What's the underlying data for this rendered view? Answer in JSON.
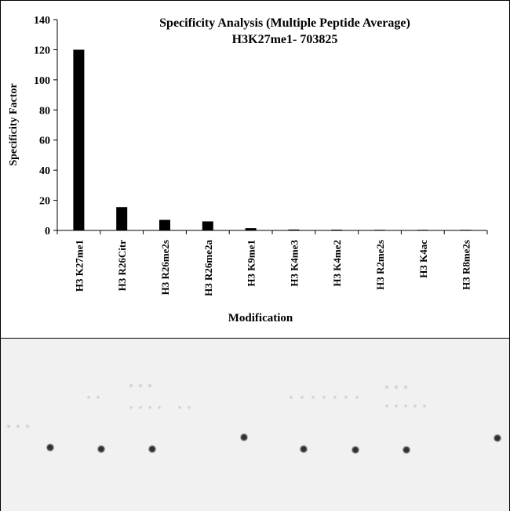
{
  "chart_data": {
    "type": "bar",
    "title": "Specificity Analysis (Multiple Peptide Average)",
    "subtitle": "H3K27me1- 703825",
    "xlabel": "Modification",
    "ylabel": "Specificity Factor",
    "ylim": [
      0,
      140
    ],
    "yticks": [
      0,
      20,
      40,
      60,
      80,
      100,
      120,
      140
    ],
    "grid": false,
    "legend": "none",
    "categories": [
      "H3 K27me1",
      "H3 R26Citr",
      "H3 R26me2s",
      "H3 R26me2a",
      "H3 K9me1",
      "H3 K4me3",
      "H3 K4me2",
      "H3 R2me2s",
      "H3 K4ac",
      "H3 R8me2s"
    ],
    "values": [
      120,
      15.5,
      7,
      6,
      1.5,
      0.6,
      0.5,
      0.4,
      0.4,
      0.4
    ],
    "bar_color": "#000000"
  },
  "blot": {
    "description_color": "#f1f1f1",
    "dot_color": "#333333"
  }
}
